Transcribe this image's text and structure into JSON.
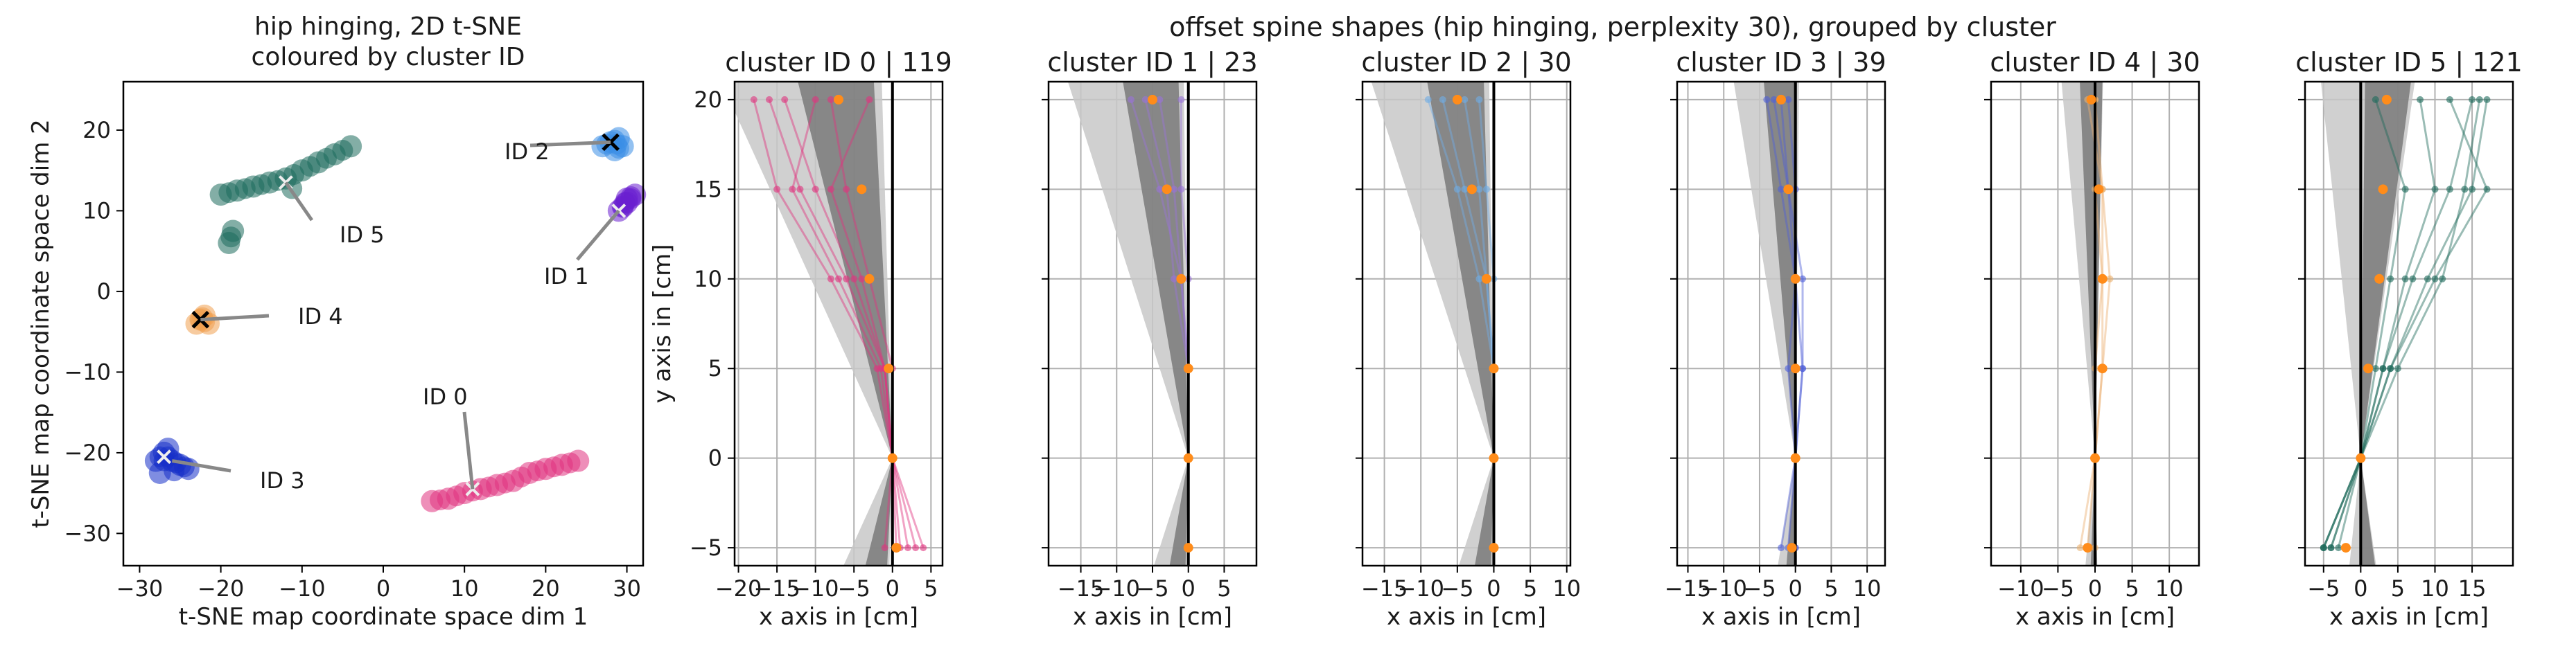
{
  "figure": {
    "left_title_line1": "hip hinging, 2D t-SNE",
    "left_title_line2": "coloured by cluster ID",
    "right_suptitle": "offset spine shapes  (hip hinging, perplexity 30), grouped by cluster"
  },
  "chart_data": [
    {
      "type": "scatter",
      "title": "hip hinging, 2D t-SNE\ncoloured by cluster ID",
      "xlabel": "t-SNE map coordinate space dim 1",
      "ylabel": "t-SNE map coordinate space dim 2",
      "xlim": [
        -32,
        32
      ],
      "ylim": [
        -34,
        26
      ],
      "xticks": [
        -30,
        -20,
        -10,
        0,
        10,
        20,
        30
      ],
      "yticks": [
        -30,
        -20,
        -10,
        0,
        10,
        20
      ],
      "grid": false,
      "clusters": [
        {
          "id": 0,
          "color": "#e0337f",
          "points": [
            [
              6,
              -26
            ],
            [
              8,
              -25.7
            ],
            [
              10,
              -25
            ],
            [
              12,
              -24.5
            ],
            [
              14,
              -24
            ],
            [
              16,
              -23.5
            ],
            [
              18,
              -22.5
            ],
            [
              20,
              -22
            ],
            [
              22,
              -21.5
            ],
            [
              24,
              -21
            ]
          ],
          "center": [
            11,
            -24.5
          ]
        },
        {
          "id": 1,
          "color": "#6a1fd0",
          "points": [
            [
              29,
              10
            ],
            [
              30,
              11
            ],
            [
              31,
              12
            ],
            [
              30,
              11.5
            ],
            [
              29.5,
              10.5
            ]
          ],
          "center": [
            29,
            10
          ]
        },
        {
          "id": 2,
          "color": "#3a8ee6",
          "points": [
            [
              27,
              18
            ],
            [
              28,
              18.5
            ],
            [
              29,
              19
            ],
            [
              28.5,
              17.5
            ],
            [
              29.5,
              18
            ]
          ],
          "center": [
            28,
            18.5
          ]
        },
        {
          "id": 3,
          "color": "#1530c8",
          "points": [
            [
              -28,
              -21
            ],
            [
              -27,
              -20
            ],
            [
              -26,
              -21
            ],
            [
              -25,
              -21.5
            ],
            [
              -24,
              -22
            ],
            [
              -27.5,
              -22.5
            ],
            [
              -26.5,
              -19.5
            ]
          ],
          "center": [
            -27,
            -20.5
          ]
        },
        {
          "id": 4,
          "color": "#f0a050",
          "points": [
            [
              -23,
              -4
            ],
            [
              -22,
              -3
            ],
            [
              -22.5,
              -3.5
            ],
            [
              -21.5,
              -4
            ]
          ],
          "center": [
            -22.5,
            -3.5
          ]
        },
        {
          "id": 5,
          "color": "#1e6b5c",
          "points": [
            [
              -20,
              12
            ],
            [
              -18,
              12.5
            ],
            [
              -16,
              13
            ],
            [
              -14,
              13.5
            ],
            [
              -12,
              14
            ],
            [
              -10,
              15
            ],
            [
              -8,
              16
            ],
            [
              -6,
              17
            ],
            [
              -4,
              18
            ],
            [
              -18.5,
              7.5
            ],
            [
              -19,
              6
            ]
          ],
          "center": [
            -12,
            13.5
          ]
        }
      ],
      "annotations": [
        {
          "text": "ID 0",
          "target": [
            11,
            -24.5
          ]
        },
        {
          "text": "ID 1",
          "target": [
            29,
            10
          ]
        },
        {
          "text": "ID 2",
          "target": [
            28,
            18.5
          ]
        },
        {
          "text": "ID 3",
          "target": [
            -26,
            -21
          ]
        },
        {
          "text": "ID 4",
          "target": [
            -22.5,
            -3.5
          ]
        },
        {
          "text": "ID 5",
          "target": [
            -12,
            13.5
          ]
        }
      ],
      "black_x_markers": [
        [
          28,
          18.5
        ],
        [
          -22.5,
          -3.5
        ]
      ]
    },
    {
      "type": "line",
      "title": "offset spine shapes  (hip hinging, perplexity 30), grouped by cluster",
      "ylabel": "y axis in [cm]",
      "xlabel": "x axis in [cm]",
      "ylim": [
        -6,
        21
      ],
      "yticks": [
        -5,
        0,
        5,
        10,
        15,
        20
      ],
      "grid": true,
      "vertex_y": [
        -5,
        0,
        5,
        10,
        15,
        20
      ],
      "panels": [
        {
          "title": "cluster ID 0 | 119",
          "color": "#e0337f",
          "xlim": [
            -20.5,
            6.5
          ],
          "xticks": [
            -20,
            -15,
            -10,
            -5,
            0,
            5
          ],
          "mean_x": [
            0.5,
            0,
            -0.5,
            -3,
            -4,
            -7
          ],
          "samples": [
            [
              3,
              0,
              -2,
              -8,
              -15,
              -18
            ],
            [
              2,
              0,
              -1,
              -6,
              -12,
              -16
            ],
            [
              1,
              0,
              -1,
              -5,
              -10,
              -14
            ],
            [
              -1,
              0,
              0,
              -3,
              -6,
              -8
            ],
            [
              0.5,
              0,
              -1,
              -4,
              -8,
              -3
            ],
            [
              4,
              0,
              -1.5,
              -7,
              -13,
              -10
            ]
          ]
        },
        {
          "title": "cluster ID 1 |  23",
          "color": "#9a73d8",
          "xlim": [
            -19.5,
            9.5
          ],
          "xticks": [
            -15,
            -10,
            -5,
            0,
            5
          ],
          "mean_x": [
            0,
            0,
            0,
            -1,
            -3,
            -5
          ],
          "samples": [
            [
              0,
              0,
              0,
              -1,
              -4,
              -8
            ],
            [
              0,
              0,
              0,
              -2,
              -3,
              -6
            ],
            [
              0,
              0,
              0,
              -1,
              -2,
              -4
            ],
            [
              0,
              0,
              0,
              0,
              -1,
              -1
            ]
          ]
        },
        {
          "title": "cluster ID 2 |  30",
          "color": "#70aee6",
          "xlim": [
            -18,
            10.5
          ],
          "xticks": [
            -15,
            -10,
            -5,
            0,
            5,
            10
          ],
          "mean_x": [
            0,
            0,
            0,
            -1,
            -3,
            -5
          ],
          "samples": [
            [
              0,
              0,
              0,
              -2,
              -5,
              -9
            ],
            [
              0,
              0,
              0,
              -1,
              -4,
              -7
            ],
            [
              0,
              0,
              0,
              -1,
              -2,
              -4
            ],
            [
              0,
              0,
              0,
              0,
              -1,
              -2
            ]
          ]
        },
        {
          "title": "cluster ID 3 |  39",
          "color": "#5060d8",
          "xlim": [
            -16.5,
            12.5
          ],
          "xticks": [
            -15,
            -10,
            -5,
            0,
            5,
            10
          ],
          "mean_x": [
            -0.5,
            0,
            0,
            0,
            -1,
            -2
          ],
          "samples": [
            [
              -1,
              0,
              1,
              1,
              -1,
              -3
            ],
            [
              0,
              0,
              0,
              0,
              -2,
              -4
            ],
            [
              -2,
              0,
              1,
              0,
              -1,
              -2
            ],
            [
              0,
              0,
              -1,
              0,
              0,
              -1
            ]
          ]
        },
        {
          "title": "cluster ID 4 |  30",
          "color": "#eab070",
          "xlim": [
            -14,
            14
          ],
          "xticks": [
            -10,
            -5,
            0,
            5,
            10
          ],
          "mean_x": [
            -1,
            0,
            1,
            1,
            0.5,
            -0.5
          ],
          "samples": [
            [
              -1,
              0,
              1,
              2,
              1,
              -1
            ],
            [
              0,
              0,
              1,
              1,
              0,
              0
            ],
            [
              -2,
              0,
              0,
              1,
              1,
              0
            ]
          ]
        },
        {
          "title": "cluster ID 5 | 121",
          "color": "#1e6b5c",
          "xlim": [
            -7.5,
            20.5
          ],
          "xticks": [
            -5,
            0,
            5,
            10,
            15
          ],
          "mean_x": [
            -2,
            0,
            1,
            2.5,
            3,
            3.5
          ],
          "samples": [
            [
              -5,
              0,
              4,
              9,
              15,
              17
            ],
            [
              -4,
              0,
              3,
              7,
              12,
              15
            ],
            [
              -5,
              0,
              4,
              10,
              17,
              12
            ],
            [
              -3,
              0,
              3,
              6,
              10,
              8
            ],
            [
              -4,
              0,
              2,
              4,
              6,
              2
            ],
            [
              -5,
              0,
              5,
              11,
              14,
              16
            ]
          ]
        }
      ]
    }
  ]
}
